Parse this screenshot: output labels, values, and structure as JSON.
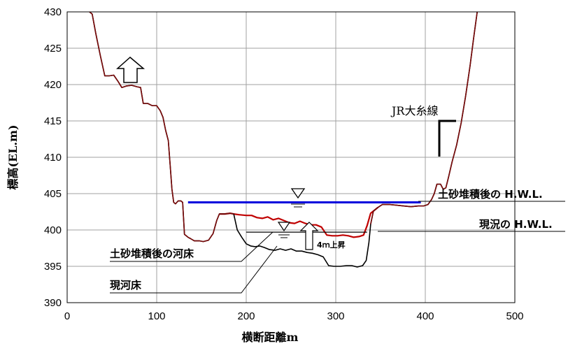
{
  "chart_data": {
    "type": "line",
    "xlabel": "横断距離m",
    "ylabel": "標高(EL.m)",
    "xlim": [
      0,
      500
    ],
    "ylim": [
      390,
      430
    ],
    "xticks": [
      0,
      100,
      200,
      300,
      400,
      500
    ],
    "yticks": [
      390,
      395,
      400,
      405,
      410,
      415,
      420,
      425,
      430
    ],
    "grid": true,
    "series": [
      {
        "name": "現河床",
        "color": "#000000",
        "points": [
          [
            25,
            430
          ],
          [
            28,
            429.7
          ],
          [
            32,
            427
          ],
          [
            37,
            424
          ],
          [
            42,
            421.2
          ],
          [
            47,
            421.2
          ],
          [
            52,
            421.3
          ],
          [
            57,
            420.4
          ],
          [
            61,
            419.6
          ],
          [
            66,
            419.8
          ],
          [
            72,
            419.9
          ],
          [
            78,
            419.7
          ],
          [
            82,
            419.6
          ],
          [
            85,
            417.4
          ],
          [
            90,
            417.4
          ],
          [
            95,
            417.1
          ],
          [
            100,
            417.1
          ],
          [
            104,
            416.4
          ],
          [
            107,
            415.5
          ],
          [
            110,
            413.7
          ],
          [
            113,
            412.3
          ],
          [
            115,
            409
          ],
          [
            117,
            405.6
          ],
          [
            119,
            403.8
          ],
          [
            121,
            403.6
          ],
          [
            124,
            404
          ],
          [
            127,
            404
          ],
          [
            129,
            403.8
          ],
          [
            131,
            399.4
          ],
          [
            135,
            399
          ],
          [
            138,
            398.8
          ],
          [
            142,
            398.5
          ],
          [
            148,
            398.5
          ],
          [
            152,
            398.4
          ],
          [
            158,
            398.6
          ],
          [
            163,
            399.5
          ],
          [
            167,
            401.3
          ],
          [
            170,
            402.2
          ],
          [
            176,
            402.2
          ],
          [
            182,
            402.3
          ],
          [
            186,
            402.2
          ],
          [
            190,
            400
          ],
          [
            195,
            399
          ],
          [
            200,
            398.1
          ],
          [
            205,
            397.8
          ],
          [
            210,
            397.7
          ],
          [
            215,
            397.8
          ],
          [
            220,
            397.6
          ],
          [
            226,
            397.3
          ],
          [
            232,
            397.2
          ],
          [
            238,
            397.4
          ],
          [
            244,
            397.2
          ],
          [
            250,
            397.4
          ],
          [
            256,
            397.1
          ],
          [
            262,
            397.1
          ],
          [
            268,
            396.9
          ],
          [
            274,
            396.8
          ],
          [
            280,
            396.6
          ],
          [
            286,
            396.3
          ],
          [
            292,
            395.1
          ],
          [
            298,
            395
          ],
          [
            305,
            395
          ],
          [
            312,
            395.1
          ],
          [
            318,
            395.1
          ],
          [
            324,
            394.9
          ],
          [
            330,
            395.1
          ],
          [
            334,
            395.8
          ],
          [
            337,
            398.3
          ],
          [
            339,
            400.8
          ],
          [
            342,
            402.6
          ],
          [
            347,
            403.1
          ],
          [
            352,
            403.5
          ],
          [
            360,
            403.5
          ],
          [
            368,
            403.4
          ],
          [
            376,
            403.3
          ],
          [
            384,
            403.2
          ],
          [
            392,
            403.3
          ],
          [
            398,
            403.3
          ],
          [
            403,
            403.5
          ],
          [
            407,
            404.2
          ],
          [
            410,
            405
          ],
          [
            413,
            406.3
          ],
          [
            417,
            406.3
          ],
          [
            420,
            405.6
          ],
          [
            423,
            405.8
          ],
          [
            426,
            407.3
          ],
          [
            430,
            409.4
          ],
          [
            435,
            411.7
          ],
          [
            440,
            414.7
          ],
          [
            445,
            418.4
          ],
          [
            450,
            422.6
          ],
          [
            454,
            426.4
          ],
          [
            458,
            430
          ]
        ]
      },
      {
        "name": "土砂堆積後の河床",
        "color": "#c00000",
        "points": [
          [
            170,
            402.2
          ],
          [
            176,
            402.2
          ],
          [
            182,
            402.3
          ],
          [
            186,
            402.2
          ],
          [
            192,
            402.1
          ],
          [
            200,
            402
          ],
          [
            206,
            402
          ],
          [
            212,
            401.7
          ],
          [
            218,
            401.6
          ],
          [
            224,
            401.8
          ],
          [
            230,
            401.4
          ],
          [
            236,
            401.6
          ],
          [
            242,
            401.3
          ],
          [
            248,
            401
          ],
          [
            254,
            400.9
          ],
          [
            260,
            401.2
          ],
          [
            266,
            400.9
          ],
          [
            272,
            400.7
          ],
          [
            278,
            400.7
          ],
          [
            284,
            400.4
          ],
          [
            290,
            399.3
          ],
          [
            296,
            399.2
          ],
          [
            302,
            399.2
          ],
          [
            308,
            399.3
          ],
          [
            314,
            399.2
          ],
          [
            320,
            399
          ],
          [
            326,
            399.1
          ],
          [
            331,
            399.3
          ],
          [
            335,
            400.6
          ],
          [
            339,
            402.3
          ],
          [
            342,
            402.6
          ],
          [
            347,
            403.1
          ]
        ]
      }
    ],
    "water_levels": [
      {
        "name": "土砂堆積後の H.W.L.",
        "value": 403.8,
        "x_range": [
          135,
          395
        ],
        "color": "#0000dd"
      },
      {
        "name": "現況の H.W.L.",
        "value": 399.7,
        "x_range": [
          200,
          335
        ],
        "color": "#000000"
      }
    ],
    "annotations": {
      "hwl_after_label": "土砂堆積後の H.W.L.",
      "hwl_current_label": "現況の H.W.L.",
      "bed_after_label": "土砂堆積後の河床",
      "bed_current_label": "現河床",
      "rise_label": "4ｍ上昇",
      "railway_label": "JR大糸線"
    }
  }
}
